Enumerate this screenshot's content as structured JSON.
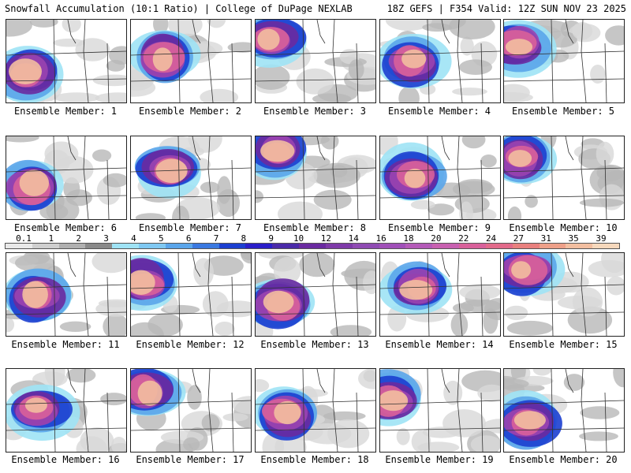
{
  "header": {
    "left_title": "Snowfall Accumulation (10:1 Ratio) | College of DuPage NEXLAB",
    "right_title": "18Z GEFS | F354 Valid: 12Z SUN NOV 23 2025"
  },
  "members": [
    {
      "caption": "Ensemble Member: 1"
    },
    {
      "caption": "Ensemble Member: 2"
    },
    {
      "caption": "Ensemble Member: 3"
    },
    {
      "caption": "Ensemble Member: 4"
    },
    {
      "caption": "Ensemble Member: 5"
    },
    {
      "caption": "Ensemble Member: 6"
    },
    {
      "caption": "Ensemble Member: 7"
    },
    {
      "caption": "Ensemble Member: 8"
    },
    {
      "caption": "Ensemble Member: 9"
    },
    {
      "caption": "Ensemble Member: 10"
    },
    {
      "caption": "Ensemble Member: 11"
    },
    {
      "caption": "Ensemble Member: 12"
    },
    {
      "caption": "Ensemble Member: 13"
    },
    {
      "caption": "Ensemble Member: 14"
    },
    {
      "caption": "Ensemble Member: 15"
    },
    {
      "caption": "Ensemble Member: 16"
    },
    {
      "caption": "Ensemble Member: 17"
    },
    {
      "caption": "Ensemble Member: 18"
    },
    {
      "caption": "Ensemble Member: 19"
    },
    {
      "caption": "Ensemble Member: 20"
    }
  ],
  "colorbar": {
    "labels": [
      "0.1",
      "1",
      "2",
      "3",
      "4",
      "5",
      "6",
      "7",
      "8",
      "9",
      "10",
      "12",
      "14",
      "16",
      "18",
      "20",
      "22",
      "24",
      "27",
      "31",
      "35",
      "39"
    ],
    "colors": [
      "#e9e9e9",
      "#cfcfcf",
      "#b0b0b0",
      "#8a8a8a",
      "#9fe3f5",
      "#7fc8f2",
      "#5aa5ea",
      "#3a78e0",
      "#1c3fd0",
      "#2a1ec8",
      "#4a2aa8",
      "#6a2aa0",
      "#7e3aa8",
      "#8f4bb3",
      "#a04fb8",
      "#b45ab8",
      "#c860b0",
      "#d8609a",
      "#e26a8a",
      "#e8807e",
      "#eea089",
      "#f2bea0",
      "#f6d8bc"
    ]
  }
}
